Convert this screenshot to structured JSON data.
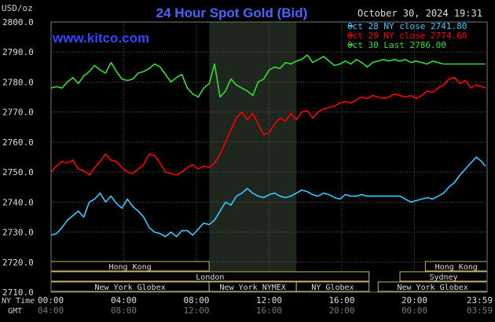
{
  "chart_data": {
    "type": "line",
    "title": "24 Hour Spot Gold (Bid)",
    "unit_label": "USD/oz",
    "timestamp": "October 30, 2024 19:31",
    "brand": "www.kitco.com",
    "ylim": [
      2710,
      2800
    ],
    "yticks": [
      2800,
      2790,
      2780,
      2770,
      2760,
      2750,
      2740,
      2730,
      2720,
      2710
    ],
    "ytick_labels": [
      "2800.0",
      "2790.0",
      "2780.0",
      "2770.0",
      "2760.0",
      "2750.0",
      "2740.0",
      "2730.0",
      "2720.0",
      "2710.0"
    ],
    "xlim": [
      0,
      24
    ],
    "xticks": [
      0,
      4,
      8,
      12,
      16,
      20,
      24
    ],
    "xtick_labels_ny": [
      "00:00",
      "04:00",
      "08:00",
      "12:00",
      "16:00",
      "20:00",
      "23:59"
    ],
    "xtick_labels_gmt": [
      "04:00",
      "08:00",
      "12:00",
      "16:00",
      "20:00",
      "00:00",
      "03:59"
    ],
    "axis_row_labels": {
      "ny": "NY Time",
      "gmt": "GMT"
    },
    "shaded_interval": [
      8.7,
      13.5
    ],
    "series": [
      {
        "name": "Oct 28 NY close 2741.80",
        "color": "#33ccff",
        "x": [
          0,
          0.3,
          0.6,
          0.9,
          1.2,
          1.5,
          1.8,
          2.1,
          2.4,
          2.7,
          3.0,
          3.3,
          3.6,
          3.9,
          4.2,
          4.5,
          4.8,
          5.1,
          5.4,
          5.7,
          6.0,
          6.3,
          6.6,
          6.9,
          7.2,
          7.5,
          7.8,
          8.1,
          8.4,
          8.7,
          9.0,
          9.3,
          9.6,
          9.9,
          10.2,
          10.5,
          10.8,
          11.1,
          11.4,
          11.7,
          12.0,
          12.3,
          12.6,
          12.9,
          13.2,
          13.5,
          13.8,
          14.1,
          14.4,
          14.7,
          15.0,
          15.3,
          15.6,
          15.9,
          16.2,
          16.5,
          16.8,
          17.1,
          17.4,
          17.7,
          18.0,
          18.3,
          18.6,
          18.9,
          19.2,
          19.5,
          19.8,
          20.1,
          20.4,
          20.7,
          21.0,
          21.3,
          21.6,
          21.9,
          22.2,
          22.5,
          22.8,
          23.1,
          23.4,
          23.7,
          23.9
        ],
        "values": [
          2729.0,
          2729.5,
          2731.5,
          2734.0,
          2735.5,
          2737.0,
          2735.0,
          2740.0,
          2741.0,
          2743.0,
          2740.0,
          2742.0,
          2739.5,
          2738.0,
          2741.0,
          2738.5,
          2737.0,
          2735.0,
          2731.5,
          2730.0,
          2729.5,
          2728.5,
          2730.0,
          2728.5,
          2730.5,
          2730.5,
          2729.0,
          2731.0,
          2733.0,
          2732.5,
          2734.0,
          2737.0,
          2740.0,
          2739.0,
          2742.0,
          2743.0,
          2744.5,
          2743.0,
          2742.0,
          2741.5,
          2742.5,
          2743.0,
          2742.0,
          2741.5,
          2742.0,
          2743.0,
          2744.0,
          2743.5,
          2742.5,
          2742.0,
          2743.0,
          2742.5,
          2741.5,
          2741.0,
          2742.5,
          2742.0,
          2742.0,
          2742.5,
          2742.0,
          2742.0,
          2742.0,
          2742.0,
          2742.0,
          2742.0,
          2742.0,
          2741.0,
          2740.0,
          2740.5,
          2741.0,
          2741.5,
          2741.0,
          2742.0,
          2743.0,
          2745.0,
          2746.5,
          2749.0,
          2751.0,
          2753.0,
          2755.0,
          2753.5,
          2752.0
        ]
      },
      {
        "name": "Oct 29 NY close 2774.60",
        "color": "#ff0000",
        "x": [
          0,
          0.3,
          0.6,
          0.9,
          1.2,
          1.5,
          1.8,
          2.1,
          2.4,
          2.7,
          3.0,
          3.3,
          3.6,
          3.9,
          4.2,
          4.5,
          4.8,
          5.1,
          5.4,
          5.7,
          6.0,
          6.3,
          6.6,
          6.9,
          7.2,
          7.5,
          7.8,
          8.1,
          8.4,
          8.7,
          9.0,
          9.3,
          9.6,
          9.9,
          10.2,
          10.5,
          10.8,
          11.1,
          11.4,
          11.7,
          12.0,
          12.3,
          12.6,
          12.9,
          13.2,
          13.5,
          13.8,
          14.1,
          14.4,
          14.7,
          15.0,
          15.3,
          15.6,
          15.9,
          16.2,
          16.5,
          16.8,
          17.1,
          17.4,
          17.7,
          18.0,
          18.3,
          18.6,
          18.9,
          19.2,
          19.5,
          19.8,
          20.1,
          20.4,
          20.7,
          21.0,
          21.3,
          21.6,
          21.9,
          22.2,
          22.5,
          22.8,
          23.1,
          23.4,
          23.7,
          23.9
        ],
        "values": [
          2750.0,
          2752.0,
          2753.5,
          2753.0,
          2754.0,
          2751.0,
          2750.5,
          2749.0,
          2751.5,
          2753.5,
          2756.0,
          2754.0,
          2753.5,
          2751.5,
          2750.0,
          2749.5,
          2751.0,
          2752.5,
          2756.0,
          2755.5,
          2753.0,
          2750.0,
          2749.5,
          2749.0,
          2750.0,
          2751.5,
          2752.5,
          2751.0,
          2752.0,
          2751.5,
          2753.0,
          2756.0,
          2760.0,
          2764.0,
          2768.0,
          2770.0,
          2767.5,
          2769.5,
          2766.0,
          2762.5,
          2763.0,
          2766.0,
          2768.0,
          2767.0,
          2769.5,
          2767.5,
          2770.0,
          2770.5,
          2768.0,
          2770.0,
          2771.0,
          2771.5,
          2772.0,
          2773.0,
          2773.5,
          2773.0,
          2774.0,
          2775.0,
          2774.5,
          2775.5,
          2775.0,
          2774.5,
          2775.0,
          2776.0,
          2775.5,
          2775.0,
          2775.5,
          2774.5,
          2775.5,
          2777.0,
          2776.5,
          2778.0,
          2779.0,
          2781.0,
          2781.5,
          2779.5,
          2780.5,
          2778.0,
          2779.0,
          2778.5,
          2778.0
        ]
      },
      {
        "name": "Oct 30 Last 2786.00",
        "color": "#33dd33",
        "x": [
          0,
          0.3,
          0.6,
          0.9,
          1.2,
          1.5,
          1.8,
          2.1,
          2.4,
          2.7,
          3.0,
          3.3,
          3.6,
          3.9,
          4.2,
          4.5,
          4.8,
          5.1,
          5.4,
          5.7,
          6.0,
          6.3,
          6.6,
          6.9,
          7.2,
          7.5,
          7.8,
          8.1,
          8.4,
          8.7,
          9.0,
          9.3,
          9.6,
          9.9,
          10.2,
          10.5,
          10.8,
          11.1,
          11.4,
          11.7,
          12.0,
          12.3,
          12.6,
          12.9,
          13.2,
          13.5,
          13.8,
          14.1,
          14.4,
          14.7,
          15.0,
          15.3,
          15.6,
          15.9,
          16.2,
          16.5,
          16.8,
          17.1,
          17.4,
          17.7,
          18.0,
          18.3,
          18.6,
          18.9,
          19.2,
          19.5,
          19.8,
          20.1,
          20.4,
          20.7,
          21.0,
          21.3,
          21.6,
          21.9,
          22.2,
          22.5,
          22.8,
          23.1,
          23.4,
          23.7,
          23.9
        ],
        "values": [
          2778.0,
          2778.5,
          2778.0,
          2780.0,
          2781.5,
          2779.5,
          2782.0,
          2783.5,
          2785.5,
          2784.0,
          2783.0,
          2786.5,
          2783.5,
          2781.0,
          2780.5,
          2781.0,
          2783.0,
          2783.5,
          2784.5,
          2786.0,
          2785.0,
          2782.5,
          2780.0,
          2781.5,
          2782.5,
          2778.0,
          2776.0,
          2775.0,
          2778.0,
          2779.5,
          2786.0,
          2775.0,
          2777.0,
          2781.0,
          2779.0,
          2778.0,
          2777.0,
          2775.5,
          2780.0,
          2781.0,
          2784.0,
          2785.0,
          2784.5,
          2786.5,
          2786.0,
          2787.0,
          2787.5,
          2789.0,
          2786.5,
          2787.5,
          2788.5,
          2787.0,
          2785.5,
          2786.0,
          2787.0,
          2786.0,
          2787.5,
          2786.5,
          2785.0,
          2786.5,
          2787.0,
          2787.5,
          2787.0,
          2787.5,
          2787.0,
          2787.5,
          2786.5,
          2787.0,
          2786.5,
          2786.0,
          2787.0,
          2786.5,
          2786.0,
          2786.0,
          2786.0,
          2786.0,
          2786.0,
          2786.0,
          2786.0,
          2786.0,
          2786.0
        ]
      }
    ],
    "sessions": [
      {
        "label": "Hong Kong",
        "start": 0,
        "end": 8.7,
        "row": 0
      },
      {
        "label": "London",
        "start": 0,
        "end": 17.5,
        "row": 1
      },
      {
        "label": "New York Globex",
        "start": 0,
        "end": 8.7,
        "row": 2
      },
      {
        "label": "New York NYMEX",
        "start": 8.7,
        "end": 13.5,
        "row": 2
      },
      {
        "label": "NY Globex",
        "start": 13.5,
        "end": 17.5,
        "row": 2
      },
      {
        "label": "Hong Kong",
        "start": 20.6,
        "end": 24,
        "row": 0
      },
      {
        "label": "Sydney",
        "start": 19.2,
        "end": 24,
        "row": 1
      },
      {
        "label": "New York Globex",
        "start": 18.0,
        "end": 24,
        "row": 2
      }
    ],
    "grid": true,
    "legend": "top-right"
  }
}
